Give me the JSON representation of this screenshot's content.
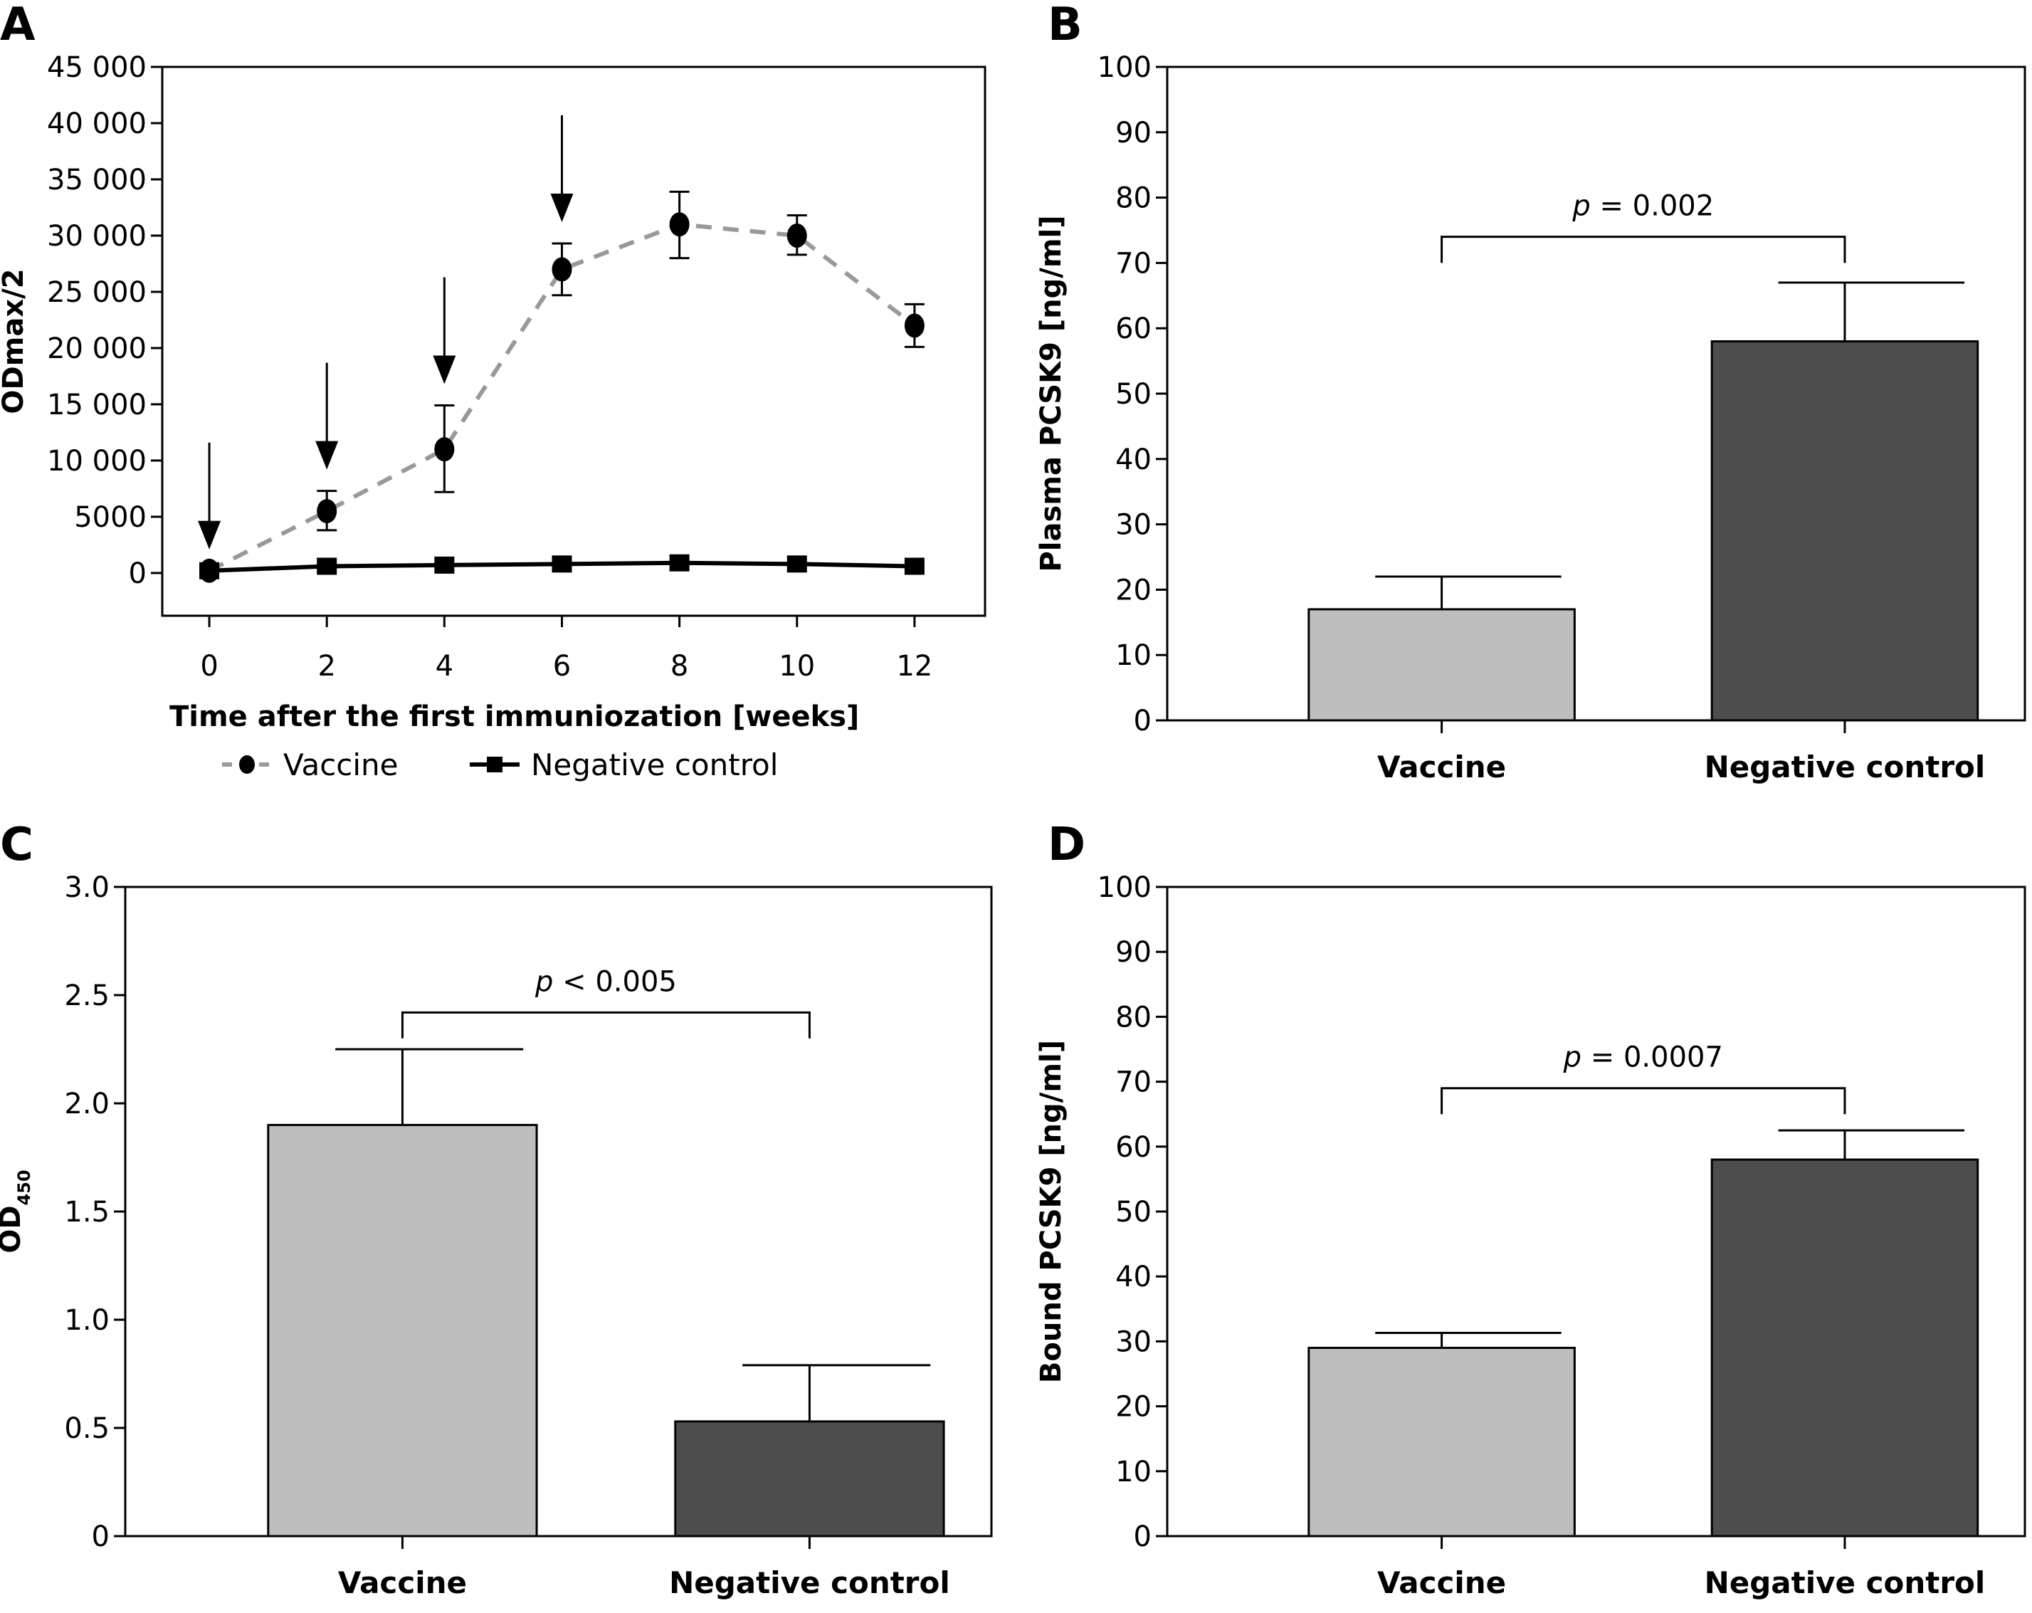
{
  "figure": {
    "panels": [
      "A",
      "B",
      "C",
      "D"
    ]
  },
  "chart_data": [
    {
      "id": "A",
      "type": "line",
      "panel_label": "A",
      "title": "",
      "xlabel": "Time after the first immuniozation [weeks]",
      "ylabel": "ODmax/2",
      "x": [
        0,
        2,
        4,
        6,
        8,
        10,
        12
      ],
      "x_ticks": [
        "0",
        "2",
        "4",
        "6",
        "8",
        "10",
        "12"
      ],
      "xlim": [
        -0.8,
        13.2
      ],
      "ylim": [
        -3800,
        45000
      ],
      "y_ticks": [
        0,
        5000,
        10000,
        15000,
        20000,
        25000,
        30000,
        35000,
        40000,
        45000
      ],
      "y_tick_labels": [
        "0",
        "5000",
        "10 000",
        "15 000",
        "20 000",
        "25 000",
        "30 000",
        "35 000",
        "40 000",
        "45 000"
      ],
      "series": [
        {
          "name": "Vaccine",
          "style": "dashed",
          "marker": "circle",
          "color": "#999999",
          "marker_color": "#000000",
          "values": [
            200,
            5500,
            11000,
            27000,
            31000,
            30000,
            22000
          ],
          "error_low": [
            null,
            3800,
            7200,
            24700,
            28000,
            28300,
            20100
          ],
          "error_high": [
            null,
            7300,
            14900,
            29300,
            33900,
            31800,
            23900
          ]
        },
        {
          "name": "Negative control",
          "style": "solid",
          "marker": "square",
          "color": "#000000",
          "marker_color": "#000000",
          "values": [
            200,
            600,
            700,
            800,
            900,
            800,
            600
          ]
        }
      ],
      "annotations": {
        "immunization_arrows_at_weeks": [
          0,
          2,
          4,
          6
        ]
      },
      "legend": {
        "placement": "bottom",
        "entries": [
          "Vaccine",
          "Negative control"
        ]
      },
      "grid": false
    },
    {
      "id": "B",
      "type": "bar",
      "panel_label": "B",
      "title": "",
      "xlabel": "",
      "ylabel": "Plasma PCSK9 [ng/ml]",
      "categories": [
        "Vaccine",
        "Negative control"
      ],
      "values": [
        17,
        58
      ],
      "error_high": [
        22,
        67
      ],
      "colors": [
        "#bebebe",
        "#4d4d4d"
      ],
      "ylim": [
        0,
        100
      ],
      "y_ticks": [
        0,
        10,
        20,
        30,
        40,
        50,
        60,
        70,
        80,
        90,
        100
      ],
      "y_tick_labels": [
        "0",
        "10",
        "20",
        "30",
        "40",
        "50",
        "60",
        "70",
        "80",
        "90",
        "100"
      ],
      "significance": {
        "text_italic": "p",
        "text_rest": " = 0.002",
        "bracket_level": 74,
        "bracket_drop": 70
      },
      "grid": false
    },
    {
      "id": "C",
      "type": "bar",
      "panel_label": "C",
      "title": "",
      "xlabel": "",
      "ylabel": "OD",
      "ylabel_sub": "450",
      "categories": [
        "Vaccine",
        "Negative control"
      ],
      "values": [
        1.9,
        0.53
      ],
      "error_high": [
        2.25,
        0.79
      ],
      "colors": [
        "#bebebe",
        "#4d4d4d"
      ],
      "ylim": [
        0,
        3.0
      ],
      "y_ticks": [
        0,
        0.5,
        1.0,
        1.5,
        2.0,
        2.5,
        3.0
      ],
      "y_tick_labels": [
        "0",
        "0.5",
        "1.0",
        "1.5",
        "2.0",
        "2.5",
        "3.0"
      ],
      "significance": {
        "text_italic": "p",
        "text_rest": " < 0.005",
        "bracket_level": 2.42,
        "bracket_drop": 2.3
      },
      "grid": false
    },
    {
      "id": "D",
      "type": "bar",
      "panel_label": "D",
      "title": "",
      "xlabel": "",
      "ylabel": "Bound PCSK9 [ng/ml]",
      "categories": [
        "Vaccine",
        "Negative control"
      ],
      "values": [
        29,
        58
      ],
      "error_high": [
        31.3,
        62.5
      ],
      "colors": [
        "#bebebe",
        "#4d4d4d"
      ],
      "ylim": [
        0,
        100
      ],
      "y_ticks": [
        0,
        10,
        20,
        30,
        40,
        50,
        60,
        70,
        80,
        90,
        100
      ],
      "y_tick_labels": [
        "0",
        "10",
        "20",
        "30",
        "40",
        "50",
        "60",
        "70",
        "80",
        "90",
        "100"
      ],
      "significance": {
        "text_italic": "p",
        "text_rest": " = 0.0007",
        "bracket_level": 69,
        "bracket_drop": 65
      },
      "grid": false
    }
  ]
}
